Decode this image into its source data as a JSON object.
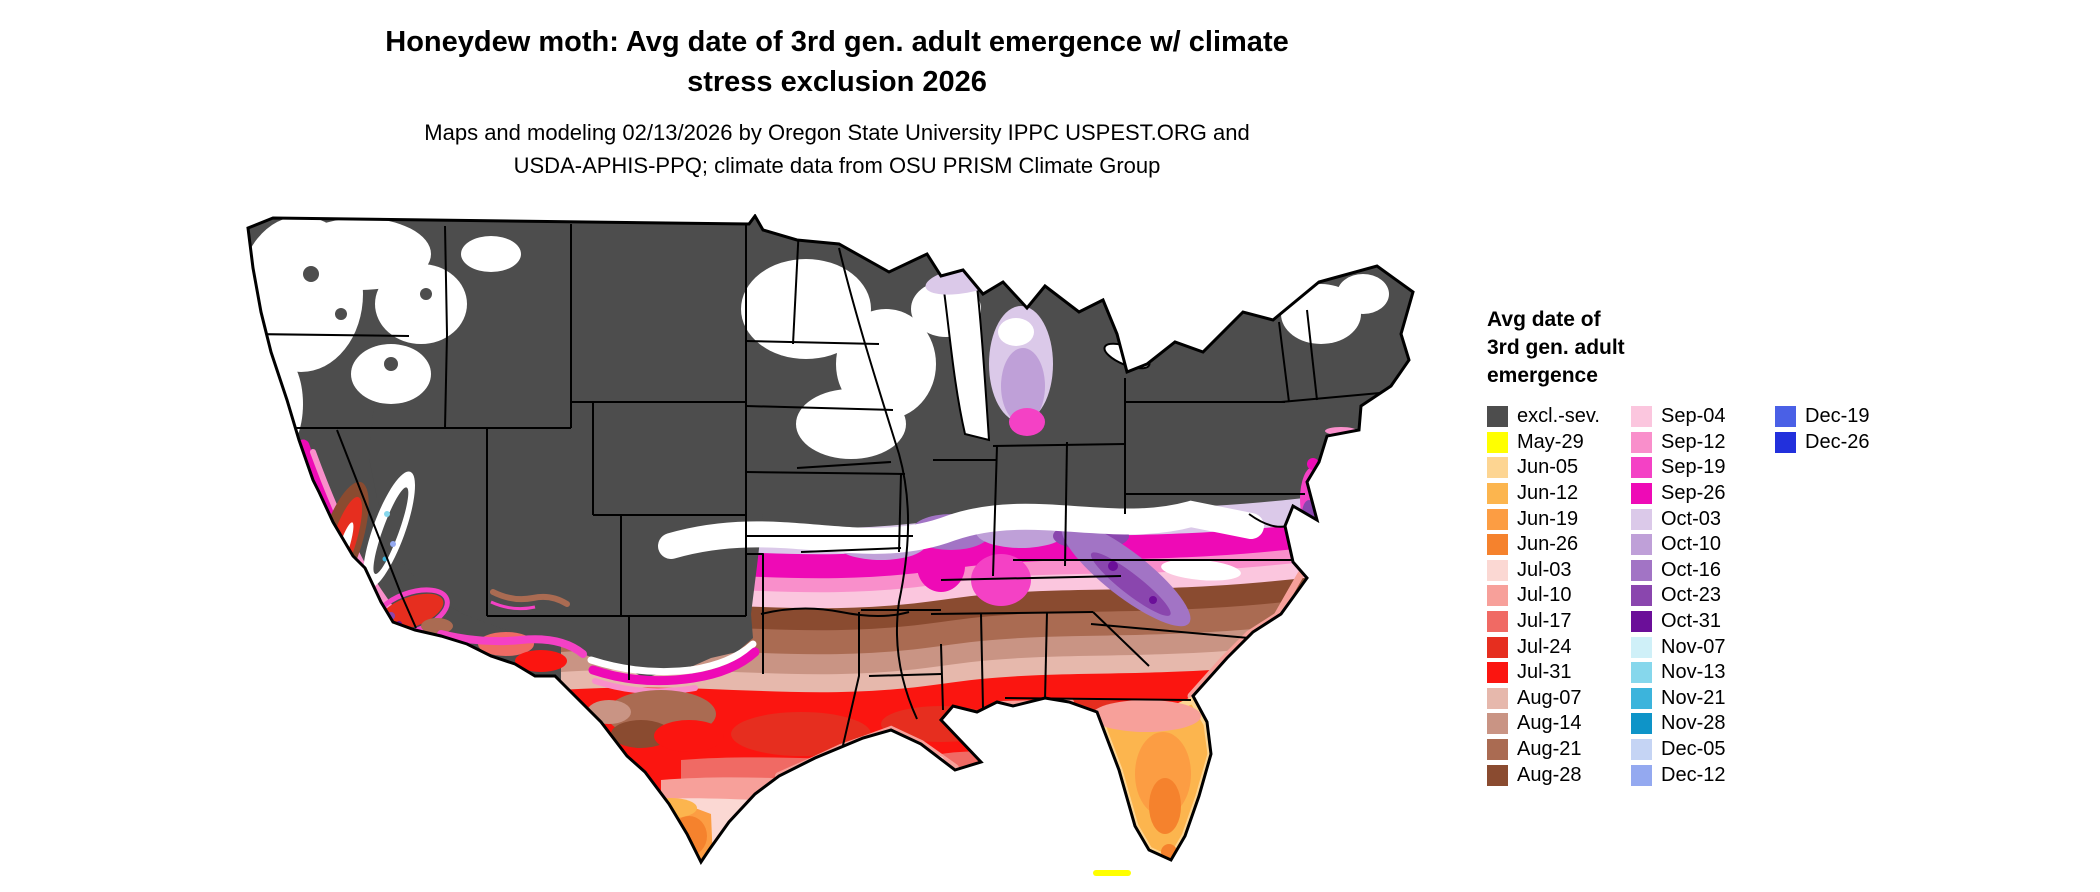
{
  "header": {
    "title_lines": [
      "Honeydew moth: Avg date of 3rd gen. adult emergence w/ climate",
      "stress exclusion 2026"
    ],
    "subtitle_lines": [
      "Maps and modeling 02/13/2026 by Oregon State University IPPC USPEST.ORG and",
      "USDA-APHIS-PPQ; climate data from OSU PRISM Climate Group"
    ]
  },
  "map": {
    "region": "Continental United States",
    "kind": "choropleth of average date of 3rd generation adult emergence",
    "excluded_label": "excl.-sev."
  },
  "legend": {
    "title_lines": [
      "Avg date of",
      "3rd gen. adult",
      "emergence"
    ],
    "columns": [
      {
        "items": [
          {
            "label": "excl.-sev.",
            "color": "#4d4d4d"
          },
          {
            "label": "May-29",
            "color": "#ffff00"
          },
          {
            "label": "Jun-05",
            "color": "#fdd592"
          },
          {
            "label": "Jun-12",
            "color": "#fcb54e"
          },
          {
            "label": "Jun-19",
            "color": "#fc9d43"
          },
          {
            "label": "Jun-26",
            "color": "#f5822d"
          },
          {
            "label": "Jul-03",
            "color": "#fbd8d3"
          },
          {
            "label": "Jul-10",
            "color": "#f7a09a"
          },
          {
            "label": "Jul-17",
            "color": "#f06a64"
          },
          {
            "label": "Jul-24",
            "color": "#e62e1f"
          },
          {
            "label": "Jul-31",
            "color": "#fb1510"
          },
          {
            "label": "Aug-07",
            "color": "#e6b8ac"
          },
          {
            "label": "Aug-14",
            "color": "#c99484"
          },
          {
            "label": "Aug-21",
            "color": "#aa6b52"
          },
          {
            "label": "Aug-28",
            "color": "#8a4b30"
          }
        ]
      },
      {
        "items": [
          {
            "label": "Sep-04",
            "color": "#fbc6de"
          },
          {
            "label": "Sep-12",
            "color": "#f98fcb"
          },
          {
            "label": "Sep-19",
            "color": "#f441c5"
          },
          {
            "label": "Sep-26",
            "color": "#ee0ab6"
          },
          {
            "label": "Oct-03",
            "color": "#dbc9e9"
          },
          {
            "label": "Oct-10",
            "color": "#bfa0d8"
          },
          {
            "label": "Oct-16",
            "color": "#a274c5"
          },
          {
            "label": "Oct-23",
            "color": "#8a46ae"
          },
          {
            "label": "Oct-31",
            "color": "#6b0f99"
          },
          {
            "label": "Nov-07",
            "color": "#cff0f8"
          },
          {
            "label": "Nov-13",
            "color": "#86d7ec"
          },
          {
            "label": "Nov-21",
            "color": "#3cb4dc"
          },
          {
            "label": "Nov-28",
            "color": "#0e94c8"
          },
          {
            "label": "Dec-05",
            "color": "#c5d4f4"
          },
          {
            "label": "Dec-12",
            "color": "#94a9f0"
          }
        ]
      },
      {
        "items": [
          {
            "label": "Dec-19",
            "color": "#4a60e6"
          },
          {
            "label": "Dec-26",
            "color": "#2230dc"
          }
        ]
      }
    ]
  }
}
